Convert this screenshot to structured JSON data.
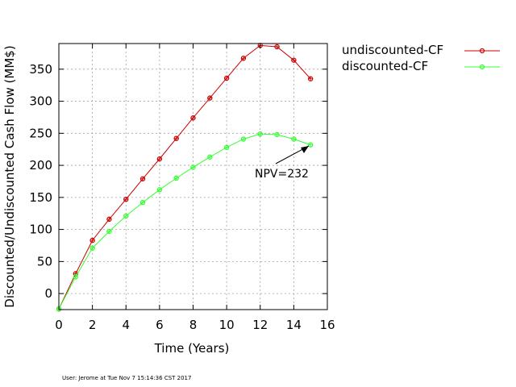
{
  "chart_data": {
    "type": "line",
    "title": "",
    "xlabel": "Time (Years)",
    "ylabel": "Discounted/Undiscounted Cash Flow (MM$)",
    "xlim": [
      0,
      16
    ],
    "ylim": [
      -25,
      390
    ],
    "xticks": [
      0,
      2,
      4,
      6,
      8,
      10,
      12,
      14,
      16
    ],
    "yticks": [
      0,
      50,
      100,
      150,
      200,
      250,
      300,
      350
    ],
    "grid": true,
    "legend_position": "outside-right",
    "series": [
      {
        "name": "undiscounted-CF",
        "color": "#cc0000",
        "x": [
          0,
          1,
          2,
          3,
          4,
          5,
          6,
          7,
          8,
          9,
          10,
          11,
          12,
          13,
          14,
          15
        ],
        "y": [
          -24,
          31,
          83,
          116,
          147,
          179,
          210,
          242,
          274,
          305,
          336,
          367,
          387,
          385,
          364,
          335
        ]
      },
      {
        "name": "discounted-CF",
        "color": "#33ff33",
        "x": [
          0,
          1,
          2,
          3,
          4,
          5,
          6,
          7,
          8,
          9,
          10,
          11,
          12,
          13,
          14,
          15
        ],
        "y": [
          -24,
          26,
          71,
          97,
          121,
          142,
          162,
          180,
          197,
          213,
          228,
          241,
          249,
          248,
          241,
          232
        ]
      }
    ],
    "annotations": [
      {
        "text": "NPV=232",
        "x": 15,
        "y": 232
      }
    ]
  },
  "footer": {
    "timestamp_label": "User: Jerome at Tue Nov  7 15:14:36 CST 2017"
  }
}
